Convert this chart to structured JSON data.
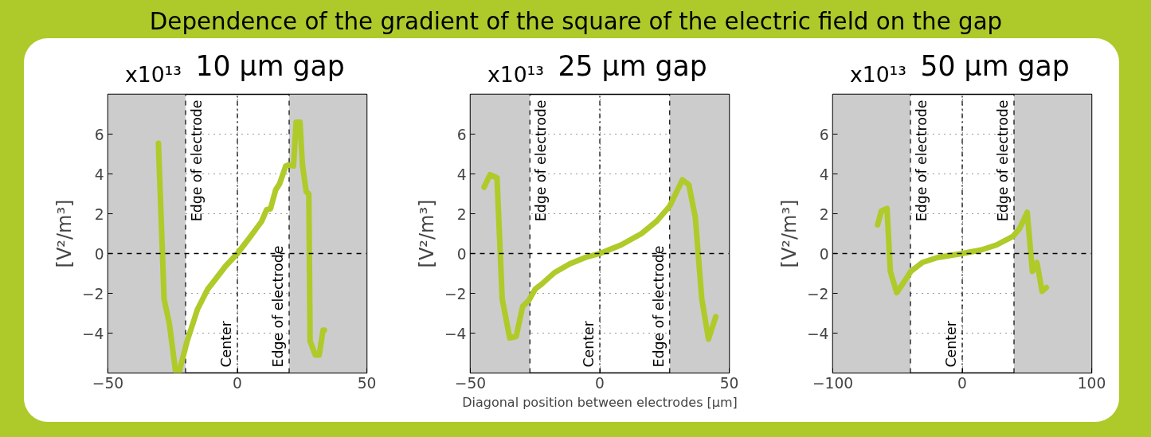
{
  "chart_data": [
    {
      "type": "other",
      "title": "Dependence of the gradient of the square of the electric field on the gap"
    },
    {
      "type": "line",
      "title": "10 μm gap",
      "ylabel": "[V²/m³]",
      "annotations": [
        "x10¹³"
      ],
      "grid": true,
      "marker": "none",
      "line_style": "solid",
      "xlim": [
        -50,
        50
      ],
      "xticks": [
        -50,
        0,
        50
      ],
      "ylim": [
        -6,
        8
      ],
      "yticks": [
        -4,
        -2,
        0,
        2,
        4,
        6
      ],
      "bands": [
        {
          "axis": "x",
          "from": -50,
          "to": -20,
          "color": "#cccccc"
        },
        {
          "axis": "x",
          "from": 20,
          "to": 50,
          "color": "#cccccc"
        }
      ],
      "ref_lines": [
        {
          "axis": "x",
          "value": -20,
          "label": "Edge of electrode",
          "line_style": "dashed"
        },
        {
          "axis": "x",
          "value": 0,
          "label": "Center",
          "line_style": "dashdot"
        },
        {
          "axis": "x",
          "value": 20,
          "label": "Edge of electrode",
          "line_style": "dashed"
        },
        {
          "axis": "y",
          "value": 0,
          "label": null,
          "line_style": "dashed"
        }
      ],
      "series": [
        {
          "color": "#aecb2a",
          "x": [
            -30.5,
            -28.3,
            -26.3,
            -23.9,
            -22.4,
            -19.4,
            -15.4,
            -11.5,
            -8.5,
            -4.6,
            0,
            4.4,
            7.3,
            9.3,
            11.3,
            12.8,
            14.8,
            16.3,
            18.7,
            19.7,
            21.7,
            22.7,
            24.2,
            25.1,
            26.6,
            27.6,
            28.1,
            30.1,
            31.6,
            33.1,
            33.6
          ],
          "values": [
            5.54,
            -2.3,
            -3.5,
            -5.9,
            -5.9,
            -4.4,
            -2.8,
            -1.8,
            -1.3,
            -0.64,
            0,
            0.74,
            1.25,
            1.6,
            2.2,
            2.25,
            3.2,
            3.5,
            4.4,
            4.45,
            4.4,
            6.6,
            6.6,
            4.5,
            3.1,
            3.0,
            -4.4,
            -5.1,
            -5.1,
            -3.85,
            -3.85
          ]
        }
      ]
    },
    {
      "type": "line",
      "title": "25 μm gap",
      "ylabel": "[V²/m³]",
      "xlabel": "Diagonal position between electrodes [μm]",
      "annotations": [
        "x10¹³"
      ],
      "grid": true,
      "marker": "none",
      "line_style": "solid",
      "xlim": [
        -50,
        50
      ],
      "xticks": [
        -50,
        0,
        50
      ],
      "ylim": [
        -6,
        8
      ],
      "yticks": [
        -4,
        -2,
        0,
        2,
        4,
        6
      ],
      "bands": [
        {
          "axis": "x",
          "from": -50,
          "to": -27,
          "color": "#cccccc"
        },
        {
          "axis": "x",
          "from": 27,
          "to": 50,
          "color": "#cccccc"
        }
      ],
      "ref_lines": [
        {
          "axis": "x",
          "value": -27,
          "label": "Edge of electrode",
          "line_style": "dashed"
        },
        {
          "axis": "x",
          "value": 0,
          "label": "Center",
          "line_style": "dashdot"
        },
        {
          "axis": "x",
          "value": 27,
          "label": "Edge of electrode",
          "line_style": "dashed"
        },
        {
          "axis": "y",
          "value": 0,
          "label": null,
          "line_style": "dashed"
        }
      ],
      "series": [
        {
          "color": "#aecb2a",
          "x": [
            -44.7,
            -42.4,
            -39.7,
            -37.7,
            -34.8,
            -32.3,
            -29.8,
            -27.4,
            -24.9,
            -22.4,
            -17.5,
            -11.6,
            -5.6,
            0,
            8.2,
            16.1,
            22.0,
            27.0,
            31.9,
            34.4,
            36.9,
            39.4,
            42.0,
            44.8
          ],
          "values": [
            3.33,
            3.96,
            3.8,
            -2.28,
            -4.24,
            -4.17,
            -2.66,
            -2.35,
            -1.78,
            -1.53,
            -0.96,
            -0.52,
            -0.2,
            0,
            0.43,
            1.0,
            1.63,
            2.38,
            3.7,
            3.46,
            1.82,
            -2.28,
            -4.3,
            -3.17
          ]
        }
      ]
    },
    {
      "type": "line",
      "title": "50 μm gap",
      "ylabel": "[V²/m³]",
      "annotations": [
        "x10¹³"
      ],
      "grid": true,
      "marker": "none",
      "line_style": "solid",
      "xlim": [
        -100,
        100
      ],
      "xticks": [
        -100,
        0,
        100
      ],
      "ylim": [
        -6,
        8
      ],
      "yticks": [
        -4,
        -2,
        0,
        2,
        4,
        6
      ],
      "bands": [
        {
          "axis": "x",
          "from": -100,
          "to": -40,
          "color": "#cccccc"
        },
        {
          "axis": "x",
          "from": 40,
          "to": 100,
          "color": "#cccccc"
        }
      ],
      "ref_lines": [
        {
          "axis": "x",
          "value": -40,
          "label": "Edge of electrode",
          "line_style": "dashed"
        },
        {
          "axis": "x",
          "value": 0,
          "label": "Center",
          "line_style": "dashdot"
        },
        {
          "axis": "x",
          "value": 40,
          "label": "Edge of electrode",
          "line_style": "dashed"
        },
        {
          "axis": "y",
          "value": 0,
          "label": null,
          "line_style": "dashed"
        }
      ],
      "series": [
        {
          "color": "#aecb2a",
          "x": [
            -65.4,
            -62.5,
            -58.1,
            -55.5,
            -50.6,
            -44.7,
            -39.7,
            -30.8,
            -19,
            0,
            14.6,
            26.5,
            39.3,
            44.3,
            50.2,
            54.2,
            57.7,
            61.7,
            65
          ],
          "values": [
            1.44,
            2.13,
            2.26,
            -0.9,
            -1.97,
            -1.4,
            -0.9,
            -0.45,
            -0.2,
            0,
            0.18,
            0.43,
            0.87,
            1.25,
            2.07,
            -0.9,
            -0.45,
            -1.9,
            -1.71
          ]
        }
      ]
    }
  ]
}
